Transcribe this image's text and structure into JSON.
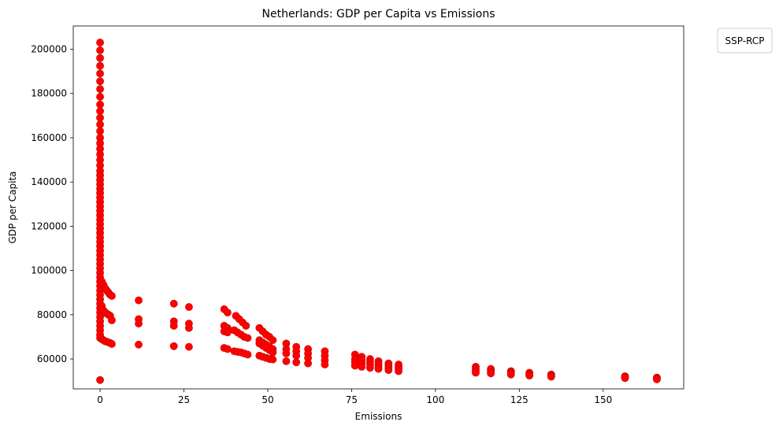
{
  "chart_data": {
    "type": "scatter",
    "title": "Netherlands: GDP per Capita vs Emissions",
    "xlabel": "Emissions",
    "ylabel": "GDP per Capita",
    "xlim": [
      -8,
      174
    ],
    "ylim": [
      46500,
      210500
    ],
    "xticks": [
      0,
      25,
      50,
      75,
      100,
      125,
      150
    ],
    "yticks": [
      60000,
      80000,
      100000,
      120000,
      140000,
      160000,
      180000,
      200000
    ],
    "grid": false,
    "legend": {
      "title": "SSP-RCP",
      "placement": "outside-top-right",
      "entries": []
    },
    "marker_color": "#ff0000",
    "marker_edge_color": "#cc0000",
    "series": [
      {
        "points": [
          [
            0,
            203000
          ],
          [
            0,
            199500
          ],
          [
            0,
            196000
          ],
          [
            0,
            192500
          ],
          [
            0,
            189000
          ],
          [
            0,
            185500
          ],
          [
            0,
            182000
          ],
          [
            0,
            178500
          ],
          [
            0,
            175000
          ],
          [
            0,
            172000
          ],
          [
            0,
            169000
          ],
          [
            0,
            166000
          ],
          [
            0,
            163000
          ],
          [
            0,
            160000
          ],
          [
            0,
            157500
          ],
          [
            0,
            155000
          ],
          [
            0,
            152500
          ],
          [
            0,
            150000
          ],
          [
            0,
            147500
          ],
          [
            0,
            145000
          ],
          [
            0,
            143000
          ],
          [
            0,
            141000
          ],
          [
            0,
            139000
          ],
          [
            0,
            137000
          ],
          [
            0,
            135000
          ],
          [
            0,
            133000
          ],
          [
            0,
            131000
          ],
          [
            0,
            129000
          ],
          [
            0,
            127000
          ],
          [
            0,
            125000
          ],
          [
            0,
            123000
          ],
          [
            0,
            121000
          ],
          [
            0,
            119000
          ],
          [
            0,
            117000
          ],
          [
            0,
            115000
          ],
          [
            0,
            113000
          ],
          [
            0,
            111000
          ],
          [
            0,
            109000
          ],
          [
            0,
            107000
          ],
          [
            0,
            105000
          ],
          [
            0,
            103000
          ],
          [
            0,
            101000
          ],
          [
            0,
            99000
          ],
          [
            0,
            97000
          ],
          [
            0,
            95000
          ],
          [
            0,
            93000
          ],
          [
            0,
            91000
          ],
          [
            0,
            89000
          ],
          [
            0,
            87000
          ],
          [
            0,
            85000
          ],
          [
            0,
            83000
          ],
          [
            0,
            81000
          ],
          [
            0,
            79000
          ],
          [
            0,
            77000
          ],
          [
            0,
            75000
          ],
          [
            0,
            73000
          ],
          [
            0,
            71000
          ],
          [
            0,
            69500
          ],
          [
            0,
            50500
          ],
          [
            0.5,
            95000
          ],
          [
            1,
            93500
          ],
          [
            1.5,
            92000
          ],
          [
            2,
            91000
          ],
          [
            2.5,
            90000
          ],
          [
            3,
            89000
          ],
          [
            3.5,
            88500
          ],
          [
            0.5,
            84000
          ],
          [
            1,
            82000
          ],
          [
            1.5,
            81000
          ],
          [
            2,
            80500
          ],
          [
            2.5,
            80000
          ],
          [
            3,
            79500
          ],
          [
            3.5,
            77500
          ],
          [
            0.5,
            69000
          ],
          [
            1,
            68500
          ],
          [
            1.5,
            68000
          ],
          [
            2,
            67800
          ],
          [
            2.5,
            67500
          ],
          [
            3,
            67200
          ],
          [
            3.5,
            66800
          ],
          [
            11.5,
            86500
          ],
          [
            11.5,
            78000
          ],
          [
            11.5,
            76000
          ],
          [
            11.5,
            66500
          ],
          [
            22,
            85000
          ],
          [
            22,
            77000
          ],
          [
            22,
            75000
          ],
          [
            22,
            65800
          ],
          [
            26.5,
            83500
          ],
          [
            26.5,
            76000
          ],
          [
            26.5,
            74000
          ],
          [
            26.5,
            65500
          ],
          [
            37,
            82500
          ],
          [
            38,
            81000
          ],
          [
            37,
            75000
          ],
          [
            38,
            74000
          ],
          [
            37,
            72500
          ],
          [
            38,
            72000
          ],
          [
            37,
            65000
          ],
          [
            38,
            64500
          ],
          [
            40.5,
            79500
          ],
          [
            41.5,
            78000
          ],
          [
            42.5,
            76500
          ],
          [
            43.5,
            75000
          ],
          [
            40,
            73000
          ],
          [
            41,
            72000
          ],
          [
            42,
            71000
          ],
          [
            43,
            70000
          ],
          [
            44,
            69500
          ],
          [
            40,
            63500
          ],
          [
            41,
            63200
          ],
          [
            42,
            63000
          ],
          [
            43,
            62500
          ],
          [
            44,
            62000
          ],
          [
            47.5,
            74000
          ],
          [
            48.5,
            72500
          ],
          [
            49.5,
            71000
          ],
          [
            50.5,
            70000
          ],
          [
            51.5,
            68500
          ],
          [
            47.5,
            68500
          ],
          [
            48.5,
            67500
          ],
          [
            49.5,
            66500
          ],
          [
            50.5,
            65500
          ],
          [
            51.5,
            64500
          ],
          [
            47.5,
            67000
          ],
          [
            48.5,
            66000
          ],
          [
            49.5,
            65000
          ],
          [
            50.5,
            64000
          ],
          [
            51.5,
            63000
          ],
          [
            47.5,
            61500
          ],
          [
            48.5,
            61000
          ],
          [
            49.5,
            60500
          ],
          [
            50.5,
            60000
          ],
          [
            51.5,
            59800
          ],
          [
            55.5,
            67000
          ],
          [
            55.5,
            64500
          ],
          [
            55.5,
            62500
          ],
          [
            55.5,
            59000
          ],
          [
            58.5,
            65500
          ],
          [
            58.5,
            63500
          ],
          [
            58.5,
            61500
          ],
          [
            58.5,
            58500
          ],
          [
            62,
            64500
          ],
          [
            62,
            62500
          ],
          [
            62,
            60500
          ],
          [
            62,
            58000
          ],
          [
            67,
            63500
          ],
          [
            67,
            61500
          ],
          [
            67,
            59500
          ],
          [
            67,
            57500
          ],
          [
            76,
            62000
          ],
          [
            76,
            60000
          ],
          [
            76,
            58500
          ],
          [
            76,
            57000
          ],
          [
            78,
            61000
          ],
          [
            78,
            59500
          ],
          [
            78,
            58000
          ],
          [
            78,
            56500
          ],
          [
            80.5,
            60000
          ],
          [
            80.5,
            58500
          ],
          [
            80.5,
            57500
          ],
          [
            80.5,
            56000
          ],
          [
            83,
            59000
          ],
          [
            83,
            57500
          ],
          [
            83,
            56500
          ],
          [
            83,
            55500
          ],
          [
            86,
            58000
          ],
          [
            86,
            57000
          ],
          [
            86,
            56000
          ],
          [
            86,
            55000
          ],
          [
            89,
            57500
          ],
          [
            89,
            56500
          ],
          [
            89,
            55500
          ],
          [
            89,
            54500
          ],
          [
            112,
            56500
          ],
          [
            112,
            55500
          ],
          [
            112,
            54500
          ],
          [
            112,
            53800
          ],
          [
            116.5,
            55500
          ],
          [
            116.5,
            54800
          ],
          [
            116.5,
            54000
          ],
          [
            116.5,
            53500
          ],
          [
            122.5,
            54500
          ],
          [
            122.5,
            54000
          ],
          [
            122.5,
            53500
          ],
          [
            122.5,
            53000
          ],
          [
            128,
            53800
          ],
          [
            128,
            53300
          ],
          [
            128,
            52800
          ],
          [
            128,
            52500
          ],
          [
            134.5,
            53000
          ],
          [
            134.5,
            52700
          ],
          [
            134.5,
            52300
          ],
          [
            134.5,
            52000
          ],
          [
            156.5,
            52200
          ],
          [
            156.5,
            51900
          ],
          [
            156.5,
            51600
          ],
          [
            156.5,
            51400
          ],
          [
            166,
            51600
          ],
          [
            166,
            51300
          ],
          [
            166,
            51000
          ],
          [
            166,
            50800
          ]
        ]
      }
    ]
  }
}
